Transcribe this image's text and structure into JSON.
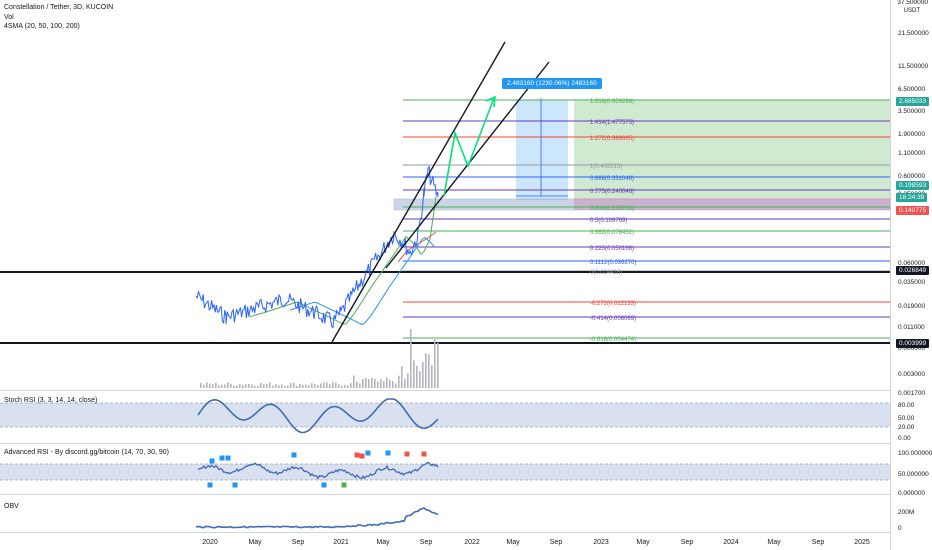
{
  "header": {
    "title": "Constellation / Tether, 3D, KUCOIN",
    "vol_label": "Vol",
    "sma_label": "4SMA (20, 50, 100, 200)"
  },
  "price_axis": {
    "top_partial": "37.500000",
    "currency": "USDT",
    "ticks": [
      "21.500000",
      "11.500000",
      "6.500000",
      "3.500000",
      "1.900000",
      "1.100000",
      "0.600000",
      "0.350000",
      "0.060000",
      "0.035000",
      "0.019000",
      "0.011000",
      "0.006000",
      "0.003000",
      "0.001700"
    ]
  },
  "price_labels": [
    {
      "text": "2.685033",
      "bg": "#26a69a"
    },
    {
      "text": "0.198593",
      "bg": "#26a69a"
    },
    {
      "text": "18:24:39",
      "bg": "#26a69a"
    },
    {
      "text": "0.140775",
      "bg": "#ef5350"
    },
    {
      "text": "0.026849",
      "bg": "#131722"
    },
    {
      "text": "0.003999",
      "bg": "#131722"
    }
  ],
  "callout": {
    "text": "2.483160 (1230.06%) 2483160"
  },
  "fib_levels": [
    {
      "label": "1.618(0.659286)",
      "color": "#4caf50"
    },
    {
      "label": "1.414(1.477575)",
      "color": "#673ab7"
    },
    {
      "label": "1.272(0.986685)",
      "color": "#f44336"
    },
    {
      "label": "1(0.455213)",
      "color": "#9598a1"
    },
    {
      "label": "0.888(0.331046)",
      "color": "#2962ff"
    },
    {
      "label": "0.775(0.240046)",
      "color": "#673ab7"
    },
    {
      "label": "0.618(0.155216)",
      "color": "#4caf50"
    },
    {
      "label": "0.5(0.109769)",
      "color": "#673ab7"
    },
    {
      "label": "0.382(0.078452)",
      "color": "#4caf50"
    },
    {
      "label": "0.225(0.050166)",
      "color": "#673ab7"
    },
    {
      "label": "0.1112(0.036270)",
      "color": "#2962ff"
    },
    {
      "label": "0(0.024416)",
      "color": "#9598a1"
    },
    {
      "label": "-0.272(0.012133)",
      "color": "#f44336"
    },
    {
      "label": "-0.414(0.008069)",
      "color": "#673ab7"
    },
    {
      "label": "-0.618(0.004474)",
      "color": "#4caf50"
    }
  ],
  "stoch": {
    "label": "Stoch RSI (3, 3, 14, 14, close)",
    "ticks": [
      "80.00",
      "50.00",
      "20.00",
      "0.00"
    ]
  },
  "adv_rsi": {
    "label": "Advanced RSI - By discord.gg/bitcoin (14, 70, 30, 90)",
    "ticks": [
      "100.000000",
      "50.000000",
      "0.000000"
    ]
  },
  "obv": {
    "label": "OBV",
    "ticks": [
      "200M",
      "0"
    ]
  },
  "time_axis": {
    "ticks": [
      "2020",
      "May",
      "Sep",
      "2021",
      "May",
      "Sep",
      "2022",
      "May",
      "Sep",
      "2023",
      "May",
      "Sep",
      "2024",
      "May",
      "Sep",
      "2025"
    ]
  },
  "colors": {
    "price_line": "#2962ff",
    "channel": "#131722",
    "arrow": "#00e676",
    "long_target": "#4caf50",
    "long_stop": "#ef5350",
    "rsi_line": "#3f6cb3",
    "band": "#c9d4ea"
  },
  "chart_data": {
    "type": "line",
    "title": "Constellation / Tether, 3D, KUCOIN",
    "y_scale": "log",
    "ylim": [
      0.0015,
      37.5
    ],
    "series": [
      {
        "name": "Constellation / Tether",
        "x": [
          "2020-01",
          "2020-03",
          "2020-05",
          "2020-07",
          "2020-09",
          "2020-11",
          "2021-01",
          "2021-02",
          "2021-03",
          "2021-04",
          "2021-05",
          "2021-06",
          "2021-07",
          "2021-08",
          "2021-09",
          "2021-10"
        ],
        "values": [
          0.014,
          0.008,
          0.01,
          0.013,
          0.009,
          0.007,
          0.009,
          0.02,
          0.04,
          0.075,
          0.06,
          0.045,
          0.07,
          0.22,
          0.4,
          0.199
        ]
      }
    ],
    "fib_values": [
      0.659286,
      1.477575,
      0.986685,
      0.455213,
      0.331046,
      0.240046,
      0.155216,
      0.109769,
      0.078452,
      0.050166,
      0.03627,
      0.024416,
      0.012133,
      0.008069,
      0.004474
    ],
    "horizontal_levels": [
      0.026849,
      0.003999
    ],
    "target": {
      "value": 2.48316,
      "percent": "1230.06%"
    },
    "xlabel": "",
    "ylabel": "",
    "grid": false,
    "legend": "none"
  }
}
